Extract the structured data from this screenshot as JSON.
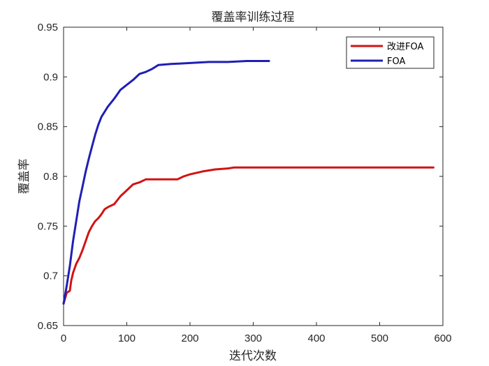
{
  "chart_data": {
    "type": "line",
    "title": "覆盖率训练过程",
    "xlabel": "迭代次数",
    "ylabel": "覆盖率",
    "xlim": [
      0,
      600
    ],
    "ylim": [
      0.65,
      0.95
    ],
    "xticks": [
      0,
      100,
      200,
      300,
      400,
      500,
      600
    ],
    "yticks": [
      0.65,
      0.7,
      0.75,
      0.8,
      0.85,
      0.9,
      0.95
    ],
    "ytick_labels": [
      "0.65",
      "0.7",
      "0.75",
      "0.8",
      "0.85",
      "0.9",
      "0.95"
    ],
    "grid": false,
    "legend_position": "top-right",
    "series": [
      {
        "name": "改进FOA",
        "color": "#d11313",
        "x": [
          0,
          5,
          10,
          12,
          15,
          20,
          25,
          30,
          35,
          40,
          45,
          50,
          55,
          60,
          65,
          70,
          80,
          90,
          100,
          110,
          120,
          130,
          150,
          180,
          190,
          200,
          220,
          240,
          260,
          270,
          300,
          400,
          500,
          585
        ],
        "y": [
          0.672,
          0.683,
          0.685,
          0.695,
          0.703,
          0.712,
          0.718,
          0.726,
          0.735,
          0.744,
          0.75,
          0.755,
          0.758,
          0.762,
          0.767,
          0.769,
          0.772,
          0.78,
          0.786,
          0.792,
          0.794,
          0.797,
          0.797,
          0.797,
          0.8,
          0.802,
          0.805,
          0.807,
          0.808,
          0.809,
          0.809,
          0.809,
          0.809,
          0.809
        ]
      },
      {
        "name": "FOA",
        "color": "#1f1fb5",
        "x": [
          0,
          5,
          10,
          15,
          20,
          25,
          30,
          35,
          40,
          45,
          50,
          55,
          60,
          65,
          70,
          80,
          90,
          100,
          110,
          120,
          130,
          140,
          150,
          170,
          200,
          230,
          260,
          290,
          325
        ],
        "y": [
          0.672,
          0.69,
          0.71,
          0.735,
          0.755,
          0.775,
          0.79,
          0.805,
          0.818,
          0.83,
          0.842,
          0.852,
          0.86,
          0.865,
          0.87,
          0.878,
          0.887,
          0.892,
          0.897,
          0.903,
          0.905,
          0.908,
          0.912,
          0.913,
          0.914,
          0.915,
          0.915,
          0.916,
          0.916
        ]
      }
    ]
  }
}
